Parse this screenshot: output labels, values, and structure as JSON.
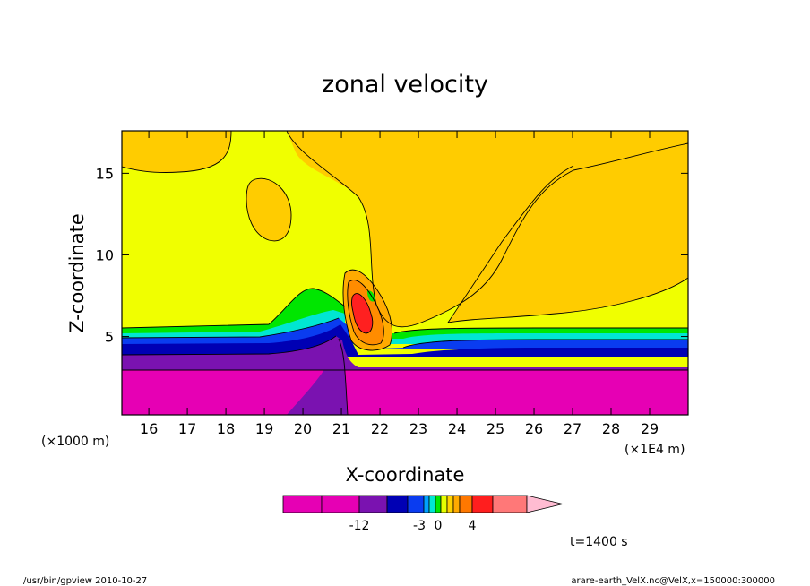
{
  "chart_data": {
    "type": "contour",
    "title": "zonal velocity",
    "xlabel": "X-coordinate",
    "ylabel": "Z-coordinate",
    "x_offset_label": "(×1000 m)",
    "x_units_label": "(×1E4 m)",
    "xlim": [
      15.3,
      30.0
    ],
    "ylim": [
      0.2,
      17.6
    ],
    "x_ticks": [
      "16",
      "17",
      "18",
      "19",
      "20",
      "21",
      "22",
      "23",
      "24",
      "25",
      "26",
      "27",
      "28",
      "29"
    ],
    "x_tick_values": [
      16,
      17,
      18,
      19,
      20,
      21,
      22,
      23,
      24,
      25,
      26,
      27,
      28,
      29
    ],
    "y_ticks": [
      "5",
      "10",
      "15"
    ],
    "y_tick_values": [
      5,
      10,
      15
    ],
    "grid": false,
    "colorbar": {
      "tick_labels": [
        "-12",
        "-3",
        "0",
        "4"
      ],
      "colors": [
        "#e600b4",
        "#e600b4",
        "#7a12b0",
        "#0000b4",
        "#0a3cf0",
        "#00a0ff",
        "#00e6d2",
        "#00e600",
        "#e6ff00",
        "#ffd200",
        "#ffaa00",
        "#ff7800",
        "#ff1e1e",
        "#ff7878",
        "#ffbcd2"
      ]
    },
    "field_colors": {
      "deep_negative": "#e600b4",
      "negative_2": "#7a12b0",
      "negative_3": "#0000b4",
      "negative_4": "#0a3cf0",
      "near_zero_neg": "#00e6d2",
      "small_neg": "#00e600",
      "zero_band": "#f0ff00",
      "small_pos": "#ffcc00",
      "pos_2": "#ff8c00",
      "pos_3": "#ff2020"
    },
    "time_label": "t=1400 s"
  },
  "footer": {
    "left": "/usr/bin/gpview   2010-10-27",
    "right": "arare-earth_VelX.nc@VelX,x=150000:300000"
  }
}
